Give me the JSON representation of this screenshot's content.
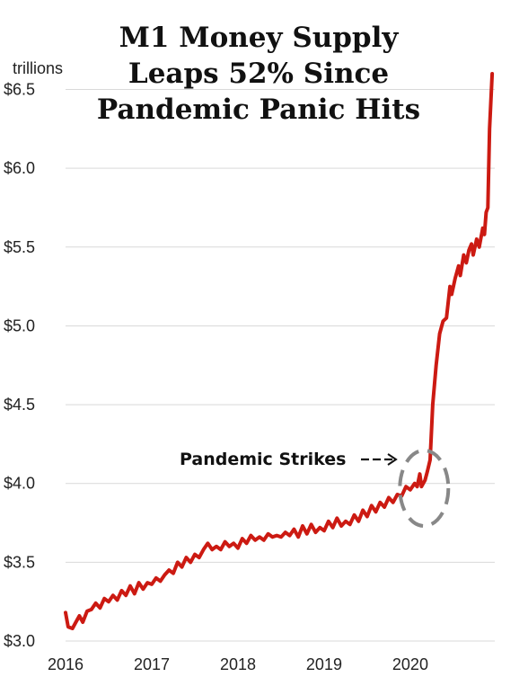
{
  "title_lines": [
    "M1 Money Supply",
    "Leaps 52% Since",
    "Pandemic Panic Hits"
  ],
  "unit_label": "trillions",
  "annotation": "Pandemic Strikes",
  "colors": {
    "line": "#cc1a12",
    "grid": "#d9d9d9",
    "circle": "#888888"
  },
  "chart_data": {
    "type": "line",
    "title": "M1 Money Supply Leaps 52% Since Pandemic Panic Hits",
    "ylabel": "trillions",
    "xlim": [
      2016,
      2020.98
    ],
    "ylim": [
      3.0,
      6.6
    ],
    "x_ticks": [
      2016,
      2017,
      2018,
      2019,
      2020
    ],
    "x_tick_labels": [
      "2016",
      "2017",
      "2018",
      "2019",
      "2020"
    ],
    "y_ticks": [
      3.0,
      3.5,
      4.0,
      4.5,
      5.0,
      5.5,
      6.0,
      6.5
    ],
    "y_tick_labels": [
      "$3.0",
      "$3.5",
      "$4.0",
      "$4.5",
      "$5.0",
      "$5.5",
      "$6.0",
      "$6.5"
    ],
    "grid": "horizontal",
    "points": [
      [
        2016.0,
        3.18
      ],
      [
        2016.03,
        3.09
      ],
      [
        2016.08,
        3.08
      ],
      [
        2016.12,
        3.12
      ],
      [
        2016.16,
        3.16
      ],
      [
        2016.2,
        3.12
      ],
      [
        2016.25,
        3.19
      ],
      [
        2016.3,
        3.2
      ],
      [
        2016.35,
        3.24
      ],
      [
        2016.4,
        3.21
      ],
      [
        2016.45,
        3.27
      ],
      [
        2016.5,
        3.25
      ],
      [
        2016.55,
        3.29
      ],
      [
        2016.6,
        3.26
      ],
      [
        2016.65,
        3.32
      ],
      [
        2016.7,
        3.29
      ],
      [
        2016.75,
        3.35
      ],
      [
        2016.8,
        3.3
      ],
      [
        2016.85,
        3.37
      ],
      [
        2016.9,
        3.33
      ],
      [
        2016.95,
        3.37
      ],
      [
        2017.0,
        3.36
      ],
      [
        2017.05,
        3.4
      ],
      [
        2017.1,
        3.38
      ],
      [
        2017.15,
        3.42
      ],
      [
        2017.2,
        3.45
      ],
      [
        2017.25,
        3.43
      ],
      [
        2017.3,
        3.5
      ],
      [
        2017.35,
        3.47
      ],
      [
        2017.4,
        3.53
      ],
      [
        2017.45,
        3.5
      ],
      [
        2017.5,
        3.55
      ],
      [
        2017.55,
        3.53
      ],
      [
        2017.6,
        3.58
      ],
      [
        2017.65,
        3.62
      ],
      [
        2017.7,
        3.58
      ],
      [
        2017.75,
        3.6
      ],
      [
        2017.8,
        3.58
      ],
      [
        2017.85,
        3.63
      ],
      [
        2017.9,
        3.6
      ],
      [
        2017.95,
        3.62
      ],
      [
        2018.0,
        3.59
      ],
      [
        2018.05,
        3.65
      ],
      [
        2018.1,
        3.62
      ],
      [
        2018.15,
        3.67
      ],
      [
        2018.2,
        3.64
      ],
      [
        2018.25,
        3.66
      ],
      [
        2018.3,
        3.64
      ],
      [
        2018.35,
        3.68
      ],
      [
        2018.4,
        3.66
      ],
      [
        2018.45,
        3.67
      ],
      [
        2018.5,
        3.66
      ],
      [
        2018.55,
        3.69
      ],
      [
        2018.6,
        3.67
      ],
      [
        2018.65,
        3.71
      ],
      [
        2018.7,
        3.66
      ],
      [
        2018.75,
        3.73
      ],
      [
        2018.8,
        3.68
      ],
      [
        2018.85,
        3.74
      ],
      [
        2018.9,
        3.69
      ],
      [
        2018.95,
        3.72
      ],
      [
        2019.0,
        3.7
      ],
      [
        2019.05,
        3.76
      ],
      [
        2019.1,
        3.72
      ],
      [
        2019.15,
        3.78
      ],
      [
        2019.2,
        3.73
      ],
      [
        2019.25,
        3.76
      ],
      [
        2019.3,
        3.74
      ],
      [
        2019.35,
        3.8
      ],
      [
        2019.4,
        3.76
      ],
      [
        2019.45,
        3.83
      ],
      [
        2019.5,
        3.79
      ],
      [
        2019.55,
        3.86
      ],
      [
        2019.6,
        3.82
      ],
      [
        2019.65,
        3.88
      ],
      [
        2019.7,
        3.85
      ],
      [
        2019.75,
        3.91
      ],
      [
        2019.8,
        3.88
      ],
      [
        2019.85,
        3.93
      ],
      [
        2019.9,
        3.92
      ],
      [
        2019.95,
        3.98
      ],
      [
        2020.0,
        3.96
      ],
      [
        2020.05,
        4.0
      ],
      [
        2020.08,
        3.98
      ],
      [
        2020.11,
        4.06
      ],
      [
        2020.13,
        3.98
      ],
      [
        2020.17,
        4.02
      ],
      [
        2020.2,
        4.08
      ],
      [
        2020.23,
        4.15
      ],
      [
        2020.26,
        4.5
      ],
      [
        2020.3,
        4.75
      ],
      [
        2020.34,
        4.95
      ],
      [
        2020.38,
        5.03
      ],
      [
        2020.42,
        5.05
      ],
      [
        2020.46,
        5.25
      ],
      [
        2020.48,
        5.2
      ],
      [
        2020.52,
        5.3
      ],
      [
        2020.56,
        5.38
      ],
      [
        2020.58,
        5.32
      ],
      [
        2020.62,
        5.45
      ],
      [
        2020.65,
        5.4
      ],
      [
        2020.68,
        5.48
      ],
      [
        2020.71,
        5.52
      ],
      [
        2020.73,
        5.45
      ],
      [
        2020.77,
        5.55
      ],
      [
        2020.8,
        5.5
      ],
      [
        2020.84,
        5.62
      ],
      [
        2020.86,
        5.58
      ],
      [
        2020.88,
        5.72
      ],
      [
        2020.9,
        5.75
      ],
      [
        2020.92,
        6.25
      ],
      [
        2020.95,
        6.6
      ]
    ]
  }
}
